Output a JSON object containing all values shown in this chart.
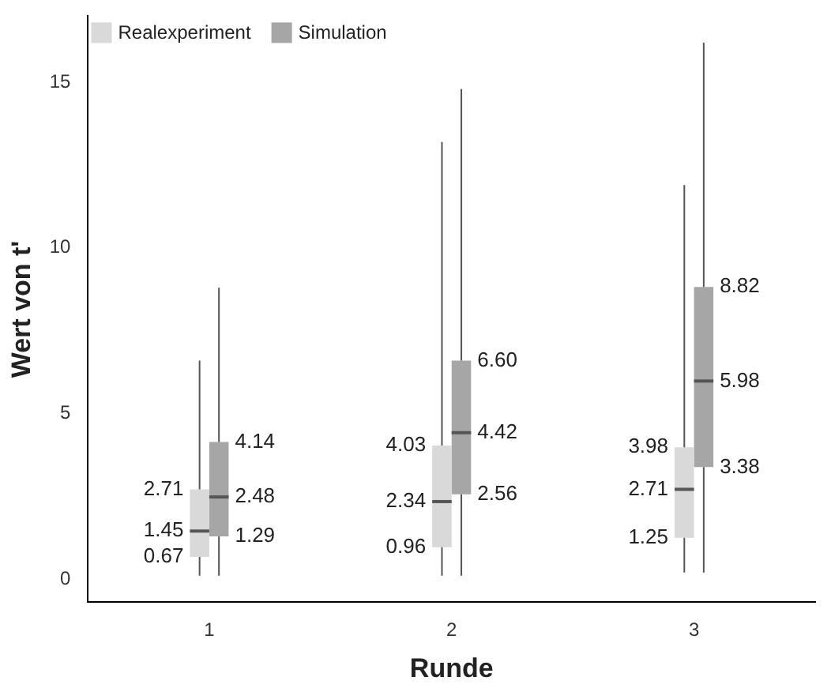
{
  "chart_data": {
    "type": "box",
    "xlabel": "Runde",
    "ylabel": "Wert von t'",
    "categories": [
      "1",
      "2",
      "3"
    ],
    "series": [
      {
        "name": "Realexperiment",
        "color": "#d9d9d9",
        "boxes": [
          {
            "low": 0.1,
            "q1": 0.67,
            "median": 1.45,
            "q3": 2.71,
            "high": 6.6
          },
          {
            "low": 0.1,
            "q1": 0.96,
            "median": 2.34,
            "q3": 4.03,
            "high": 13.2
          },
          {
            "low": 0.2,
            "q1": 1.25,
            "median": 2.71,
            "q3": 3.98,
            "high": 11.9
          }
        ]
      },
      {
        "name": "Simulation",
        "color": "#a6a6a6",
        "boxes": [
          {
            "low": 0.1,
            "q1": 1.29,
            "median": 2.48,
            "q3": 4.14,
            "high": 8.8
          },
          {
            "low": 0.1,
            "q1": 2.56,
            "median": 4.42,
            "q3": 6.6,
            "high": 14.8
          },
          {
            "low": 0.2,
            "q1": 3.38,
            "median": 5.98,
            "q3": 8.82,
            "high": 16.2
          }
        ]
      }
    ],
    "annotations": [
      {
        "text": "0.67",
        "x": "1",
        "y": 0.67
      },
      {
        "text": "1.45",
        "x": "1",
        "y": 1.45
      },
      {
        "text": "2.71",
        "x": "1",
        "y": 2.71
      },
      {
        "text": "1.29",
        "x": "1",
        "y": 1.29
      },
      {
        "text": "2.48",
        "x": "1",
        "y": 2.48
      },
      {
        "text": "4.14",
        "x": "1",
        "y": 4.14
      },
      {
        "text": "0.96",
        "x": "2",
        "y": 0.96
      },
      {
        "text": "2.34",
        "x": "2",
        "y": 2.34
      },
      {
        "text": "4.03",
        "x": "2",
        "y": 4.03
      },
      {
        "text": "2.56",
        "x": "2",
        "y": 2.56
      },
      {
        "text": "4.42",
        "x": "2",
        "y": 4.42
      },
      {
        "text": "6.60",
        "x": "2",
        "y": 6.6
      },
      {
        "text": "1.25",
        "x": "3",
        "y": 1.25
      },
      {
        "text": "2.71",
        "x": "3",
        "y": 2.71
      },
      {
        "text": "3.98",
        "x": "3",
        "y": 3.98
      },
      {
        "text": "3.38",
        "x": "3",
        "y": 3.38
      },
      {
        "text": "5.98",
        "x": "3",
        "y": 5.98
      },
      {
        "text": "8.82",
        "x": "3",
        "y": 8.82
      }
    ],
    "ylim": [
      -0.7,
      17
    ],
    "yticks": [
      0,
      5,
      10,
      15
    ],
    "grid": false,
    "legend": "top left"
  }
}
